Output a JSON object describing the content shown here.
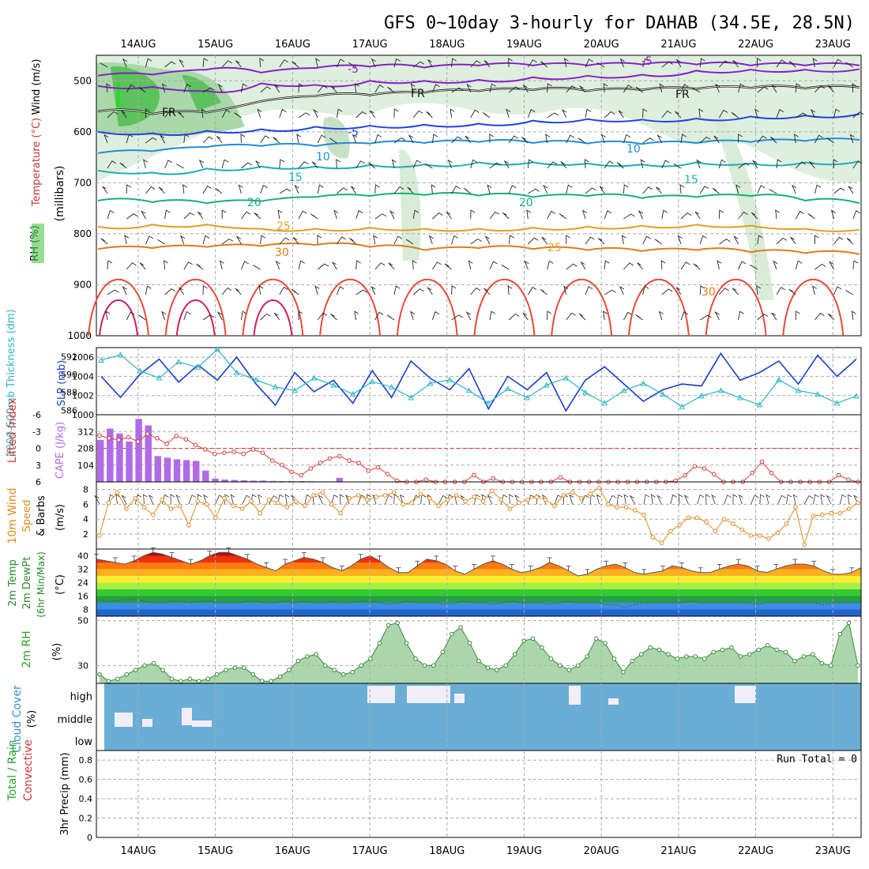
{
  "title": "GFS 0~10day 3-hourly for DAHAB (34.5E, 28.5N)",
  "dates": [
    "14AUG",
    "15AUG",
    "16AUG",
    "17AUG",
    "18AUG",
    "19AUG",
    "20AUG",
    "21AUG",
    "22AUG",
    "23AUG"
  ],
  "colors": {
    "grid": "#aaaaaa",
    "rh_fill": "#3fae3f",
    "rh_light": "#d8ecd8",
    "wind_barb": "#222222",
    "slp": "#1a3fcc",
    "thickness": "#2bb7c4",
    "lifted": "#d83a3a",
    "cape": "#b06be6",
    "wind10": "#e08a1a",
    "rh2m": "#8fc88f",
    "cloud": "#6aaed6",
    "cloud_gap": "#f2eef8"
  },
  "chart_data": [
    {
      "type": "heatmap",
      "name": "upper",
      "ylabel_parts": [
        "RH (%)",
        "Temperature (°C)",
        "Wind (m/s)"
      ],
      "ylabel_units": "(millibars)",
      "yticks": [
        500,
        600,
        700,
        800,
        900,
        1000
      ],
      "contour_labels": [
        "-5",
        "-5",
        "FR",
        "FR",
        "FR",
        "-5",
        "10",
        "10",
        "15",
        "15",
        "20",
        "20",
        "25",
        "25",
        "30",
        "30"
      ],
      "contours": [
        {
          "label": "-5",
          "color": "#8a1ec8",
          "y": [
            490,
            488,
            478,
            484,
            475,
            472,
            474,
            470,
            470,
            470,
            468,
            468,
            470,
            470,
            470
          ]
        },
        {
          "label": "-5",
          "color": "#8a1ec8",
          "y": [
            510,
            512,
            520,
            505,
            508,
            500,
            500,
            498,
            493,
            490,
            488,
            480,
            478,
            478,
            477
          ]
        },
        {
          "label": "FR",
          "color": "#111111",
          "y": [
            560,
            565,
            562,
            540,
            530,
            528,
            523,
            520,
            518,
            520,
            518,
            516,
            514,
            515,
            513
          ]
        },
        {
          "label": "-5",
          "color": "#2244dd",
          "y": [
            600,
            603,
            598,
            595,
            590,
            588,
            586,
            584,
            578,
            575,
            576,
            574,
            570,
            568,
            565
          ]
        },
        {
          "label": "10",
          "color": "#1e8fd8",
          "y": [
            642,
            638,
            630,
            628,
            628,
            623,
            622,
            620,
            622,
            623,
            624,
            622,
            620,
            618,
            616
          ]
        },
        {
          "label": "15",
          "color": "#19b0b8",
          "y": [
            676,
            680,
            672,
            668,
            668,
            665,
            664,
            660,
            660,
            662,
            664,
            660,
            662,
            660,
            658
          ]
        },
        {
          "label": "20",
          "color": "#17b07a",
          "y": [
            735,
            738,
            740,
            736,
            728,
            726,
            724,
            725,
            728,
            726,
            730,
            728,
            726,
            735,
            740
          ]
        },
        {
          "label": "25",
          "color": "#e0a020",
          "y": [
            786,
            782,
            782,
            790,
            790,
            788,
            790,
            790,
            788,
            786,
            784,
            782,
            784,
            790,
            792
          ]
        },
        {
          "label": "30",
          "color": "#e07a1a",
          "y": [
            830,
            828,
            826,
            824,
            822,
            826,
            832,
            828,
            830,
            832,
            834,
            832,
            836,
            838,
            840
          ]
        }
      ]
    },
    {
      "type": "line",
      "name": "slp_thickness",
      "ylabel_left": "1000-500mb Thickness (dm)",
      "ylabel_right": "SLP (mb)",
      "yticks_left": [
        586,
        588,
        590,
        592
      ],
      "yticks_right": [
        1000,
        1002,
        1004,
        1006
      ],
      "series": [
        {
          "name": "SLP (mb)",
          "values": [
            1004,
            1001.8,
            1004.2,
            1005.8,
            1003.4,
            1005.2,
            1003.6,
            1006,
            1003.2,
            1001,
            1004.4,
            1002.4,
            1003.6,
            1001.2,
            1004.6,
            1001.8,
            1005.6,
            1003.8,
            1002.6,
            1004.8,
            1000.6,
            1004,
            1002.6,
            1004.4,
            1000.4,
            1003.6,
            1005,
            1003.2,
            1001.4,
            1002.6,
            1003.2,
            1003,
            1006.4,
            1003.6,
            1004.4,
            1005.6,
            1003.2,
            1006.2,
            1004,
            1005.8
          ]
        },
        {
          "name": "Thickness (dm)",
          "values": [
            591.6,
            592.2,
            590.4,
            589.6,
            591.4,
            590.8,
            592.8,
            590.2,
            589.4,
            588.6,
            588.2,
            589.6,
            588.8,
            587.8,
            589.2,
            588.6,
            587.4,
            589,
            589.4,
            588.2,
            586.8,
            588.4,
            587.4,
            588.8,
            589.6,
            588,
            586.8,
            588.2,
            589,
            587.8,
            586.4,
            587.6,
            588.2,
            587.4,
            586.6,
            589.4,
            588.2,
            587.8,
            586.8,
            587.6
          ]
        }
      ]
    },
    {
      "type": "bar",
      "name": "lifted_cape",
      "ylabel_left": "Lifted Index",
      "ylabel_right": "CAPE (J/kg)",
      "yticks_left": [
        -6,
        -3,
        0,
        3,
        6
      ],
      "yticks_right": [
        104,
        208,
        312
      ],
      "series": [
        {
          "name": "CAPE (J/kg)",
          "values": [
            260,
            330,
            300,
            250,
            390,
            350,
            160,
            150,
            140,
            135,
            130,
            70,
            20,
            15,
            12,
            10,
            8,
            8,
            6,
            5,
            5,
            5,
            4,
            3,
            3,
            25,
            2,
            2,
            1,
            1,
            0,
            0,
            0,
            0,
            0,
            0,
            0,
            0,
            0,
            0,
            0,
            0,
            0,
            0,
            0,
            0,
            0,
            0,
            0,
            0,
            0,
            0,
            0,
            0,
            0,
            0,
            0,
            0,
            0,
            0,
            0,
            0,
            0,
            0,
            0,
            0,
            0,
            0,
            0,
            0,
            0,
            0,
            0,
            0,
            0,
            0,
            0,
            0,
            0,
            0
          ]
        },
        {
          "name": "Lifted Index",
          "values": [
            -2.3,
            -1.8,
            -1.5,
            -2.0,
            -1.2,
            -2.6,
            -1.8,
            -0.8,
            -2.2,
            -1.6,
            -0.6,
            0.2,
            1.0,
            0.8,
            0.6,
            1.0,
            0.2,
            0.8,
            2.2,
            3.0,
            4.2,
            4.8,
            3.6,
            2.6,
            1.8,
            1.4,
            2.2,
            2.6,
            4.0,
            3.4,
            4.6,
            5.8,
            6,
            6,
            5.6,
            6,
            6,
            6,
            6,
            4.8,
            6,
            5.4,
            6,
            6,
            6,
            6,
            6,
            6,
            5.2,
            6,
            6,
            6,
            6,
            6,
            6,
            6,
            6,
            6,
            6,
            6,
            5.8,
            4.8,
            3.2,
            3.6,
            4.6,
            6,
            6,
            6,
            4.4,
            2.4,
            4.4,
            6,
            6,
            6,
            6,
            6,
            6,
            4.8,
            5.6,
            6
          ]
        }
      ]
    },
    {
      "type": "line",
      "name": "wind10",
      "ylabel_parts": [
        "10m Wind",
        "Speed",
        "& Barbs"
      ],
      "ylabel_units": "(m/s)",
      "yticks": [
        2,
        4,
        6,
        8
      ],
      "series": [
        {
          "name": "10m Wind Speed",
          "values": [
            1.8,
            6.2,
            7.6,
            5.4,
            6.8,
            5.6,
            4.6,
            6.6,
            5.4,
            5.8,
            3.2,
            6.4,
            6.0,
            4.2,
            6.8,
            5.8,
            5.4,
            6.4,
            4.8,
            6.6,
            6.2,
            5.6,
            6.4,
            5.8,
            7.2,
            7.6,
            6.0,
            4.8,
            6.8,
            7.2,
            6.6,
            7.0,
            7.2,
            7.6,
            6.0,
            6.2,
            7.4,
            6.8,
            5.8,
            6.6,
            7.2,
            6.4,
            7.0,
            6.4,
            7.8,
            6.6,
            5.4,
            6.2,
            6.6,
            7.0,
            6.6,
            5.8,
            7.2,
            7.6,
            6.8,
            7.4,
            8.2,
            6.0,
            5.6,
            5.6,
            5.2,
            4.6,
            1.6,
            0.8,
            2.4,
            3.2,
            4.2,
            4.2,
            3.6,
            2.4,
            4.0,
            3.4,
            2.6,
            1.8,
            1.8,
            1.4,
            2.2,
            3.4,
            5.6,
            0.6,
            4.4,
            4.6,
            4.8,
            4.8,
            5.4,
            6.2
          ]
        }
      ]
    },
    {
      "type": "area",
      "name": "temp2m",
      "ylabel_parts": [
        "2m Temp",
        "2m DewPt",
        "(6hr Min/Max)"
      ],
      "ylabel_units": "(°C)",
      "yticks": [
        8,
        16,
        24,
        32,
        40
      ],
      "series": [
        {
          "name": "2m Temp",
          "values": [
            38,
            37,
            36,
            35,
            37,
            40,
            42,
            41,
            39,
            37,
            35,
            37,
            40,
            42,
            42,
            40,
            38,
            35,
            33,
            31,
            35,
            37,
            39,
            38,
            36,
            33,
            31,
            34,
            38,
            40,
            37,
            33,
            30,
            30,
            34,
            38,
            37,
            35,
            31,
            29,
            32,
            35,
            37,
            35,
            32,
            30,
            31,
            33,
            36,
            34,
            31,
            28,
            29,
            32,
            34,
            35,
            33,
            30,
            29,
            30,
            31,
            34,
            33,
            31,
            30,
            30,
            32,
            34,
            35,
            34,
            31,
            30,
            32,
            34,
            35,
            35,
            34,
            31,
            29,
            29,
            30,
            33
          ]
        },
        {
          "name": "2m DewPt",
          "values": [
            14,
            13,
            13,
            14,
            14,
            13,
            12,
            12,
            13,
            13,
            12,
            13,
            13,
            12,
            12,
            12,
            13,
            13,
            12,
            12,
            13,
            12,
            13,
            12,
            12,
            13,
            12,
            12,
            13,
            13,
            12,
            11,
            12,
            13,
            12,
            12,
            12,
            11,
            12,
            13,
            12,
            12,
            11,
            12,
            13,
            12,
            12,
            12,
            11,
            12,
            13,
            12,
            12,
            12,
            11,
            11,
            9,
            11,
            12,
            12,
            12,
            12,
            12,
            13,
            12,
            12,
            12,
            12,
            12,
            12,
            11,
            12,
            12,
            12,
            12,
            12,
            12,
            11,
            12,
            12,
            12,
            12
          ]
        }
      ]
    },
    {
      "type": "area",
      "name": "rh2m",
      "ylabel": "2m RH",
      "ylabel_units": "(%)",
      "yticks": [
        30,
        50
      ],
      "series": [
        {
          "name": "2m RH",
          "values": [
            26,
            23,
            24,
            26,
            28,
            30,
            31,
            28,
            24,
            23,
            24,
            23,
            24,
            26,
            28,
            29,
            29,
            26,
            23,
            23,
            25,
            28,
            32,
            34,
            35,
            30,
            28,
            26,
            27,
            30,
            33,
            40,
            48,
            49,
            40,
            33,
            30,
            30,
            36,
            44,
            47,
            40,
            32,
            29,
            28,
            30,
            35,
            41,
            42,
            38,
            33,
            30,
            28,
            30,
            34,
            42,
            40,
            33,
            27,
            32,
            35,
            38,
            37,
            35,
            33,
            34,
            34,
            33,
            36,
            37,
            38,
            34,
            35,
            37,
            39,
            37,
            36,
            32,
            34,
            35,
            31,
            30,
            44,
            49,
            30
          ]
        }
      ]
    },
    {
      "type": "bar",
      "name": "cloud",
      "ylabel": "Cloud Cover",
      "ylabel_units": "(%)",
      "levels": [
        "high",
        "middle",
        "low"
      ]
    },
    {
      "type": "bar",
      "name": "precip",
      "ylabel_parts": [
        "Total / Rain",
        "Convective"
      ],
      "ylabel_units": "3hr Precip (mm)",
      "yticks": [
        "0",
        "0.2",
        "0.4",
        "0.6",
        "0.8"
      ],
      "run_total": "Run Total = 0"
    }
  ]
}
